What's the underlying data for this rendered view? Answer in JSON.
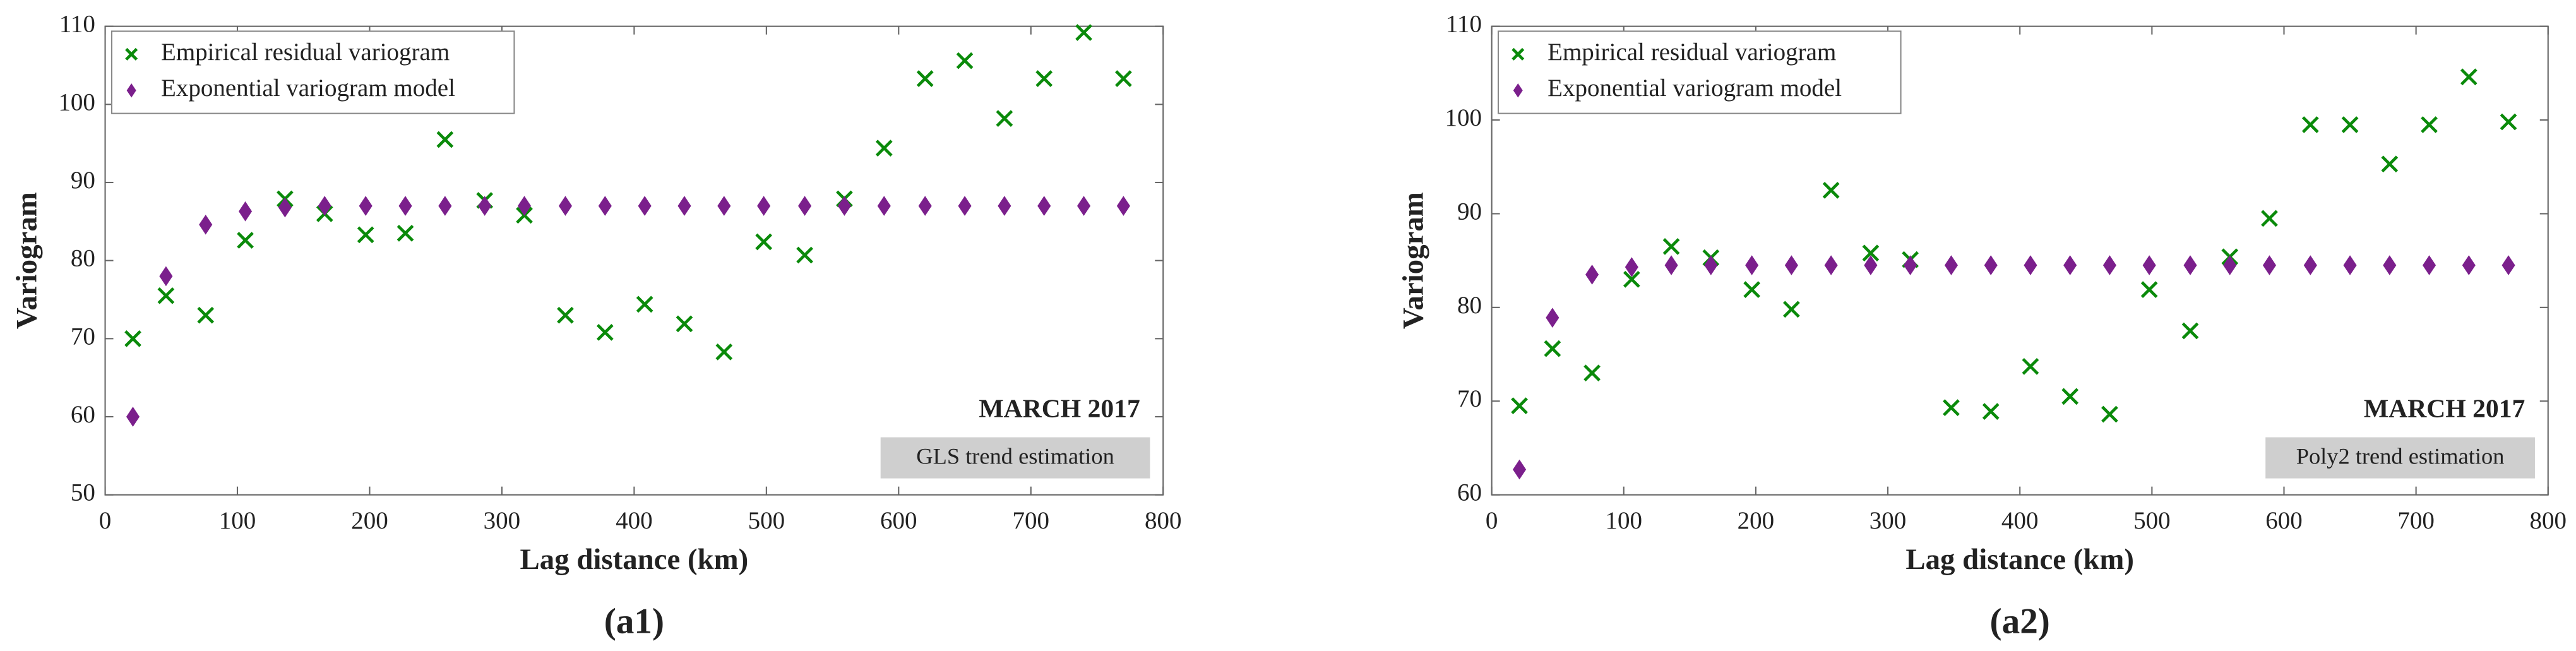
{
  "chart_data": [
    {
      "type": "scatter",
      "caption": "(a1)",
      "xlabel": "Lag distance (km)",
      "ylabel": "Variogram",
      "annotation": "MARCH 2017",
      "box_annotation": "GLS trend estimation",
      "legend": "upper left",
      "xlim": [
        0,
        800
      ],
      "xticks": [
        0,
        100,
        200,
        300,
        400,
        500,
        600,
        700,
        800
      ],
      "ylim": [
        50,
        110
      ],
      "yticks": [
        50,
        60,
        70,
        80,
        90,
        100,
        110
      ],
      "x": [
        21,
        46,
        76,
        106,
        136,
        166,
        197,
        227,
        257,
        287,
        317,
        348,
        378,
        408,
        438,
        468,
        498,
        529,
        559,
        589,
        620,
        650,
        680,
        710,
        740,
        770
      ],
      "series": [
        {
          "name": "Empirical residual variogram",
          "color": "#0a8a0a",
          "marker": "x",
          "values": [
            70,
            75.5,
            73,
            82.6,
            87.9,
            86,
            83.3,
            83.5,
            95.5,
            87.7,
            85.8,
            73,
            70.8,
            74.4,
            71.9,
            68.3,
            82.4,
            80.7,
            87.9,
            94.4,
            103.3,
            105.6,
            98.2,
            103.3,
            109.2,
            103.3
          ]
        },
        {
          "name": "Exponential variogram model",
          "color": "#7b1f8c",
          "marker": "diamond",
          "values": [
            60,
            78,
            84.6,
            86.3,
            86.8,
            87,
            87,
            87,
            87,
            87,
            87,
            87,
            87,
            87,
            87,
            87,
            87,
            87,
            87,
            87,
            87,
            87,
            87,
            87,
            87,
            87
          ]
        }
      ]
    },
    {
      "type": "scatter",
      "caption": "(a2)",
      "xlabel": "Lag distance (km)",
      "ylabel": "Variogram",
      "annotation": "MARCH 2017",
      "box_annotation": "Poly2 trend estimation",
      "legend": "upper left",
      "xlim": [
        0,
        800
      ],
      "xticks": [
        0,
        100,
        200,
        300,
        400,
        500,
        600,
        700,
        800
      ],
      "ylim": [
        60,
        110
      ],
      "yticks": [
        60,
        70,
        80,
        90,
        100,
        110
      ],
      "x": [
        21,
        46,
        76,
        106,
        136,
        166,
        197,
        227,
        257,
        287,
        317,
        348,
        378,
        408,
        438,
        468,
        498,
        529,
        559,
        589,
        620,
        650,
        680,
        710,
        740,
        770
      ],
      "series": [
        {
          "name": "Empirical residual variogram",
          "color": "#0a8a0a",
          "marker": "x",
          "values": [
            69.5,
            75.6,
            73,
            83,
            86.5,
            85.3,
            81.9,
            79.8,
            92.5,
            85.8,
            85.1,
            69.3,
            68.9,
            73.7,
            70.5,
            68.6,
            81.9,
            77.5,
            85.4,
            89.5,
            99.5,
            99.5,
            95.3,
            99.5,
            104.6,
            99.8
          ]
        },
        {
          "name": "Exponential variogram model",
          "color": "#7b1f8c",
          "marker": "diamond",
          "values": [
            62.7,
            78.9,
            83.5,
            84.3,
            84.5,
            84.5,
            84.5,
            84.5,
            84.5,
            84.5,
            84.5,
            84.5,
            84.5,
            84.5,
            84.5,
            84.5,
            84.5,
            84.5,
            84.5,
            84.5,
            84.5,
            84.5,
            84.5,
            84.5,
            84.5,
            84.5
          ]
        }
      ]
    }
  ]
}
